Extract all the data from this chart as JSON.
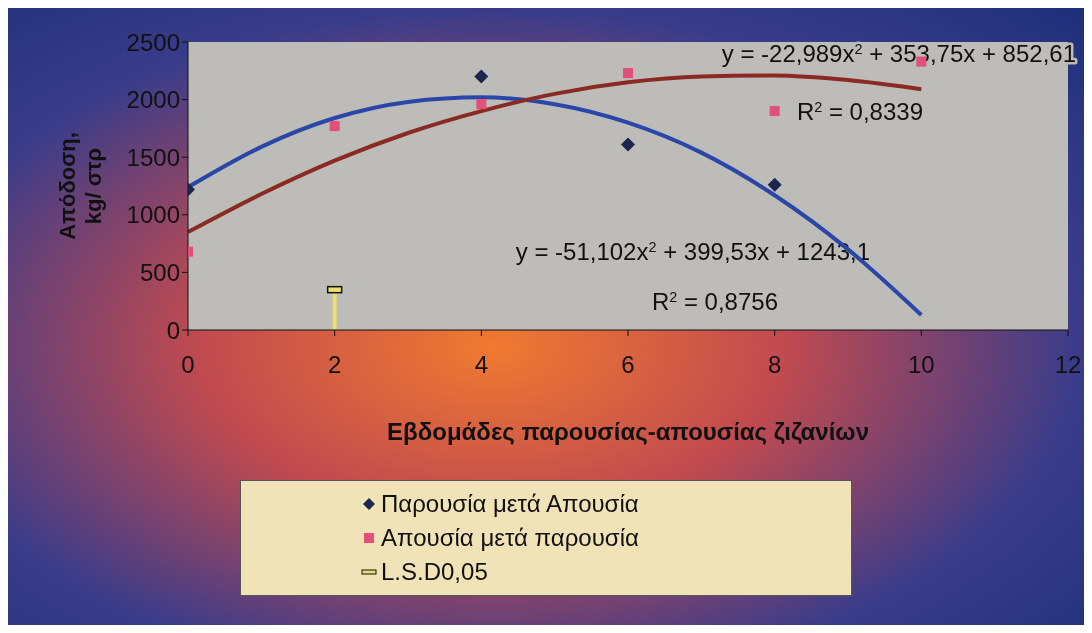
{
  "chart_data": {
    "type": "scatter",
    "xlabel": "Εβδομάδες παρουσίας-απουσίας ζιζανίων",
    "ylabel": "Απόδοση, kg/ στρ",
    "xlim": [
      0,
      12
    ],
    "xticks": [
      0,
      2,
      4,
      6,
      8,
      10,
      12
    ],
    "ylim": [
      0,
      2500
    ],
    "yticks": [
      0,
      500,
      1000,
      1500,
      2000,
      2500
    ],
    "grid": false,
    "legend": "bottom",
    "series": [
      {
        "name": "Παρουσία μετά Απουσία",
        "color": "#1c2550",
        "marker": "diamond",
        "x": [
          0,
          4,
          6,
          8
        ],
        "values": [
          1220,
          2200,
          1610,
          1260
        ]
      },
      {
        "name": "Απουσία μετά παρουσία",
        "color": "#e0507a",
        "marker": "square",
        "x": [
          0,
          2,
          4,
          6,
          8,
          10
        ],
        "values": [
          680,
          1770,
          1960,
          2230,
          1900,
          2330
        ]
      },
      {
        "name": "L.S.D0,05",
        "color": "#e8e070",
        "x": [
          2
        ],
        "values": [
          350
        ],
        "errors": [
          [
            0,
            350
          ]
        ]
      },
      {
        "type": "line",
        "color": "#2a46a8",
        "x": [
          0,
          1,
          2,
          3,
          4,
          5,
          6,
          7,
          8,
          9,
          10
        ],
        "values": [
          1240,
          1590,
          1840,
          1980,
          2020,
          1960,
          1800,
          1540,
          1170,
          700,
          130
        ]
      },
      {
        "type": "line",
        "color": "#8a2a22",
        "x": [
          0,
          1,
          2,
          3,
          4,
          5,
          6,
          7,
          8,
          9,
          10
        ],
        "values": [
          850,
          1180,
          1470,
          1710,
          1900,
          2050,
          2150,
          2200,
          2210,
          2170,
          2090
        ]
      }
    ],
    "annotations": [
      "y = -22,989x$^{2}$ + 353,75x + 852,61",
      "R$^{2}$ = 0,8339",
      "y = -51,102x$^{2}$ + 399,53x + 1243,1",
      "R$^{2}$ = 0,8756"
    ]
  }
}
